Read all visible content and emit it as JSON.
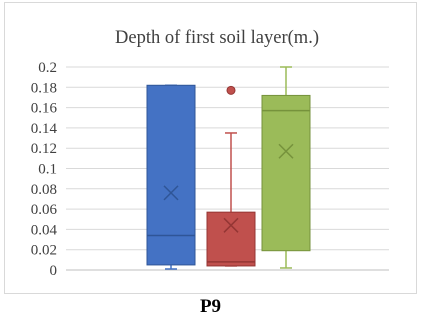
{
  "caption": "P9",
  "chart_data": {
    "type": "box",
    "title": "Depth of first soil layer(m.)",
    "xlabel": "",
    "ylabel": "",
    "ylim": [
      0,
      0.2
    ],
    "yticks": [
      0,
      0.02,
      0.04,
      0.06,
      0.08,
      0.1,
      0.12,
      0.14,
      0.16,
      0.18,
      0.2
    ],
    "ytick_labels": [
      "0",
      "0.02",
      "0.04",
      "0.06",
      "0.08",
      "0.1",
      "0.12",
      "0.14",
      "0.16",
      "0.18",
      "0.2"
    ],
    "grid": true,
    "legend": "none",
    "series": [
      {
        "color": "#4472c4",
        "edge": "#2f5597",
        "min": 0.001,
        "q1": 0.005,
        "median": 0.034,
        "q3": 0.182,
        "max": 0.182,
        "mean": 0.076,
        "outliers": []
      },
      {
        "color": "#c0504d",
        "edge": "#943634",
        "min": 0.004,
        "q1": 0.004,
        "median": 0.008,
        "q3": 0.057,
        "max": 0.135,
        "mean": 0.044,
        "outliers": [
          0.177
        ]
      },
      {
        "color": "#9bbb59",
        "edge": "#76923c",
        "min": 0.002,
        "q1": 0.019,
        "median": 0.157,
        "q3": 0.172,
        "max": 0.2,
        "mean": 0.117,
        "outliers": []
      }
    ]
  }
}
